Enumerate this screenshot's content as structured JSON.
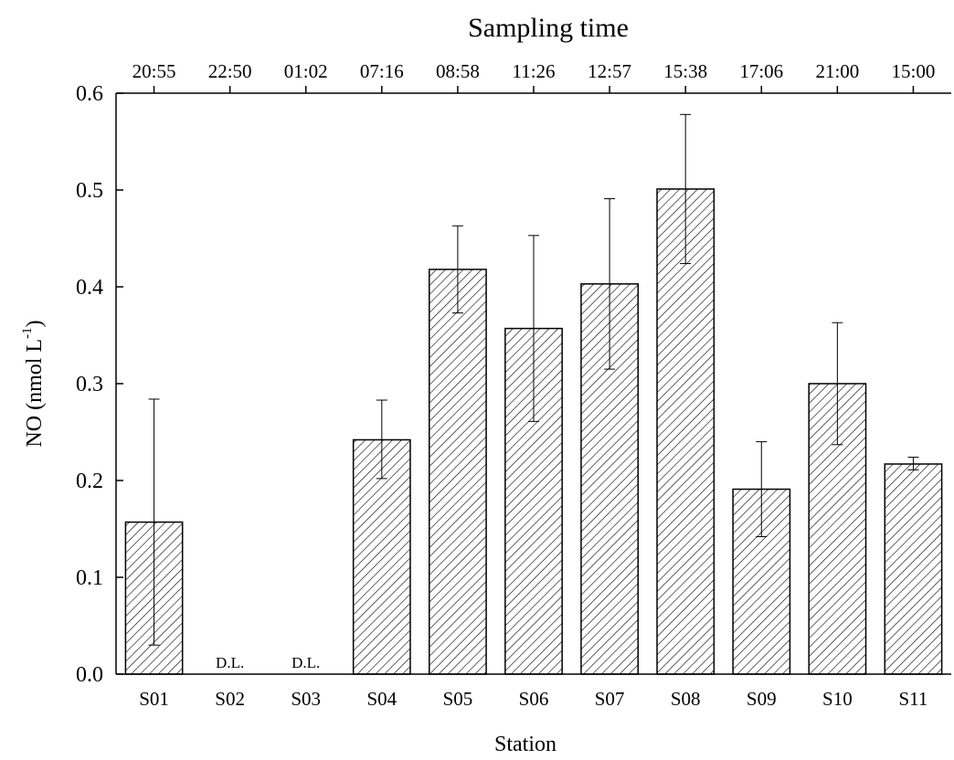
{
  "chart_data": {
    "type": "bar",
    "top_axis_title": "Sampling time",
    "xlabel": "Station",
    "ylabel": {
      "main": "NO (nmol L",
      "superscript": "-1",
      "close": ")"
    },
    "ylim": [
      0,
      0.6
    ],
    "yticks": [
      "0.0",
      "0.1",
      "0.2",
      "0.3",
      "0.4",
      "0.5",
      "0.6"
    ],
    "grid": false,
    "legend": "none",
    "categories": [
      "S01",
      "S02",
      "S03",
      "S04",
      "S05",
      "S06",
      "S07",
      "S08",
      "S09",
      "S10",
      "S11"
    ],
    "sampling_times": [
      "20:55",
      "22:50",
      "01:02",
      "07:16",
      "08:58",
      "11:26",
      "12:57",
      "15:38",
      "17:06",
      "21:00",
      "15:00"
    ],
    "values": [
      0.157,
      null,
      null,
      0.242,
      0.418,
      0.357,
      0.403,
      0.501,
      0.191,
      0.3,
      0.217
    ],
    "error_high": [
      0.284,
      null,
      null,
      0.283,
      0.463,
      0.453,
      0.491,
      0.578,
      0.24,
      0.363,
      0.224
    ],
    "error_low": [
      0.03,
      null,
      null,
      0.202,
      0.373,
      0.261,
      0.315,
      0.424,
      0.142,
      0.237,
      0.211
    ],
    "annotations": [
      {
        "category": "S02",
        "text": "D.L."
      },
      {
        "category": "S03",
        "text": "D.L."
      }
    ],
    "bar_fill": "hatched",
    "bar_color": "#000000"
  }
}
